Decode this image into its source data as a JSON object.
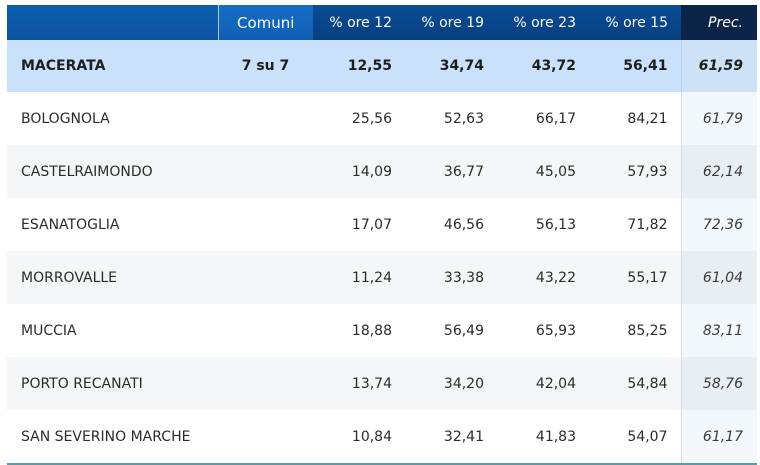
{
  "header": {
    "comuni": "Comuni",
    "col1": "% ore 12",
    "col2": "% ore 19",
    "col3": "% ore 23",
    "col4": "% ore 15",
    "prec": "Prec."
  },
  "total": {
    "name": "MACERATA",
    "comuni": "7 su 7",
    "v1": "12,55",
    "v2": "34,74",
    "v3": "43,72",
    "v4": "56,41",
    "prec": "61,59"
  },
  "rows": [
    {
      "name": "BOLOGNOLA",
      "v1": "25,56",
      "v2": "52,63",
      "v3": "66,17",
      "v4": "84,21",
      "prec": "61,79"
    },
    {
      "name": "CASTELRAIMONDO",
      "v1": "14,09",
      "v2": "36,77",
      "v3": "45,05",
      "v4": "57,93",
      "prec": "62,14"
    },
    {
      "name": "ESANATOGLIA",
      "v1": "17,07",
      "v2": "46,56",
      "v3": "56,13",
      "v4": "71,82",
      "prec": "72,36"
    },
    {
      "name": "MORROVALLE",
      "v1": "11,24",
      "v2": "33,38",
      "v3": "43,22",
      "v4": "55,17",
      "prec": "61,04"
    },
    {
      "name": "MUCCIA",
      "v1": "18,88",
      "v2": "56,49",
      "v3": "65,93",
      "v4": "85,25",
      "prec": "83,11"
    },
    {
      "name": "PORTO RECANATI",
      "v1": "13,74",
      "v2": "34,20",
      "v3": "42,04",
      "v4": "54,84",
      "prec": "58,76"
    },
    {
      "name": "SAN SEVERINO MARCHE",
      "v1": "10,84",
      "v2": "32,41",
      "v3": "41,83",
      "v4": "54,07",
      "prec": "61,17"
    }
  ]
}
